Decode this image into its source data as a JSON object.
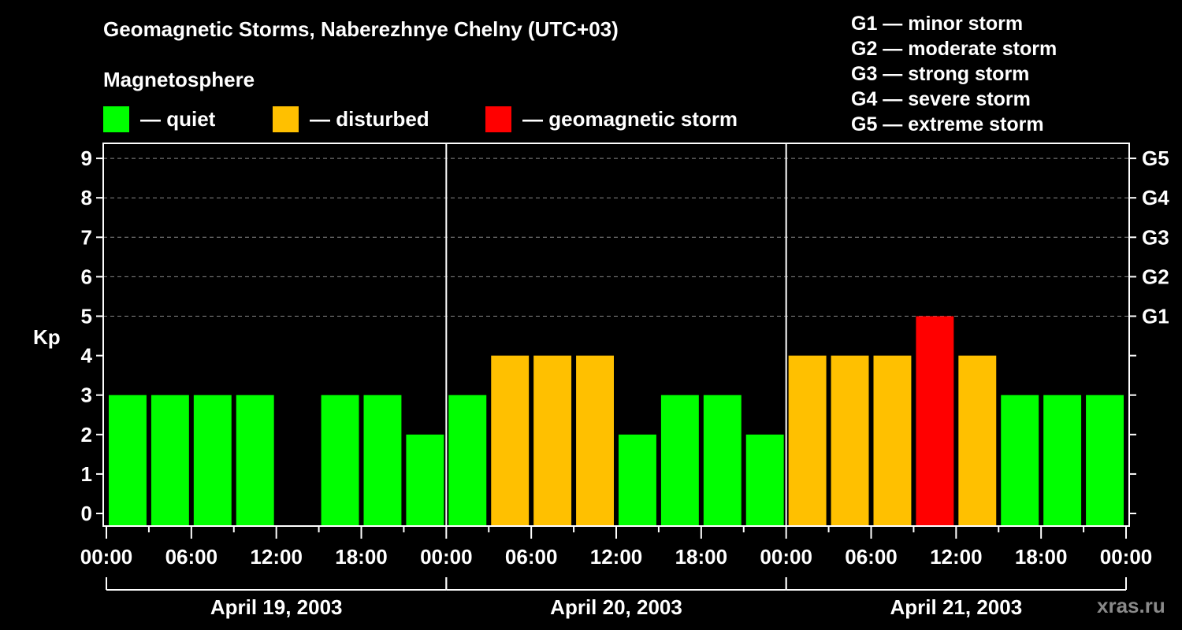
{
  "header": {
    "title": "Geomagnetic Storms, Naberezhnye Chelny (UTC+03)",
    "subtitle": "Magnetosphere"
  },
  "legend": [
    {
      "label": "— quiet",
      "color": "#00ff00"
    },
    {
      "label": "— disturbed",
      "color": "#ffc000"
    },
    {
      "label": "— geomagnetic storm",
      "color": "#ff0000"
    }
  ],
  "g_scale_legend": [
    "G1 — minor storm",
    "G2 — moderate storm",
    "G3 — strong storm",
    "G4 — severe storm",
    "G5 — extreme storm"
  ],
  "watermark": "xras.ru",
  "chart_data": {
    "type": "bar",
    "title": "Geomagnetic Storms, Naberezhnye Chelny (UTC+03)",
    "ylabel": "Kp",
    "xlabel": "",
    "ylim": [
      0,
      9
    ],
    "yticks": [
      0,
      1,
      2,
      3,
      4,
      5,
      6,
      7,
      8,
      9
    ],
    "right_axis_labels": [
      {
        "kp": 5,
        "label": "G1"
      },
      {
        "kp": 6,
        "label": "G2"
      },
      {
        "kp": 7,
        "label": "G3"
      },
      {
        "kp": 8,
        "label": "G4"
      },
      {
        "kp": 9,
        "label": "G5"
      }
    ],
    "grid": "dashed horizontal lines at Kp 5-9",
    "xtick_labels": [
      "00:00",
      "06:00",
      "12:00",
      "18:00",
      "00:00",
      "06:00",
      "12:00",
      "18:00",
      "00:00",
      "06:00",
      "12:00",
      "18:00",
      "00:00"
    ],
    "days": [
      "April 19, 2003",
      "April 20, 2003",
      "April 21, 2003"
    ],
    "categories": [
      "Apr19 00-03",
      "Apr19 03-06",
      "Apr19 06-09",
      "Apr19 09-12",
      "Apr19 12-15",
      "Apr19 15-18",
      "Apr19 18-21",
      "Apr19 21-24",
      "Apr20 00-03",
      "Apr20 03-06",
      "Apr20 06-09",
      "Apr20 09-12",
      "Apr20 12-15",
      "Apr20 15-18",
      "Apr20 18-21",
      "Apr20 21-24",
      "Apr21 00-03",
      "Apr21 03-06",
      "Apr21 06-09",
      "Apr21 09-12",
      "Apr21 12-15",
      "Apr21 15-18",
      "Apr21 18-21",
      "Apr21 21-24"
    ],
    "values": [
      3,
      3,
      3,
      3,
      null,
      3,
      3,
      2,
      3,
      4,
      4,
      4,
      2,
      3,
      3,
      2,
      4,
      4,
      4,
      5,
      4,
      3,
      3,
      3
    ],
    "colors": {
      "quiet": "#00ff00",
      "disturbed": "#ffc000",
      "storm": "#ff0000"
    }
  }
}
